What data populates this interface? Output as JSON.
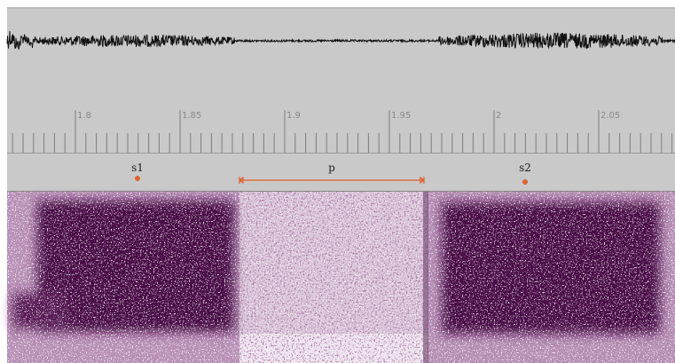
{
  "ruler": {
    "ticks": [
      "1.8",
      "1.85",
      "1.9",
      "1.95",
      "2",
      "2.05"
    ]
  },
  "tier": {
    "annotations": [
      {
        "label": "s1"
      },
      {
        "label": "p"
      },
      {
        "label": "s2"
      }
    ]
  }
}
